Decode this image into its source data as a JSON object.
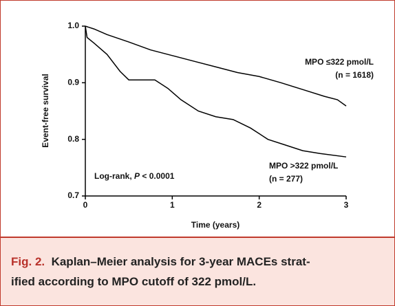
{
  "chart_data": {
    "type": "line",
    "x_label": "Time (years)",
    "y_label": "Event-free survival",
    "xlim": [
      0,
      3
    ],
    "xticks": [
      0,
      1,
      2,
      3
    ],
    "ylim": [
      0.7,
      1
    ],
    "yticks": [
      0.7,
      0.8,
      0.9,
      {
        "value": 1,
        "label": "1.0"
      }
    ],
    "series": [
      {
        "name": "MPO ≤322 pmol/L",
        "n_label": "(n = 1618)",
        "color": "#000000",
        "x": [
          0,
          0.1,
          0.25,
          0.5,
          0.75,
          1,
          1.25,
          1.5,
          1.75,
          2,
          2.25,
          2.5,
          2.75,
          2.9,
          3
        ],
        "values": [
          1,
          0.995,
          0.985,
          0.972,
          0.958,
          0.948,
          0.938,
          0.928,
          0.918,
          0.911,
          0.9,
          0.888,
          0.876,
          0.87,
          0.859
        ]
      },
      {
        "name": "MPO >322 pmol/L",
        "n_label": "(n = 277)",
        "color": "#000000",
        "x": [
          0,
          0.02,
          0.1,
          0.25,
          0.4,
          0.5,
          0.8,
          0.95,
          1.1,
          1.3,
          1.5,
          1.7,
          1.9,
          2,
          2.1,
          2.3,
          2.5,
          2.7,
          3
        ],
        "values": [
          1,
          0.98,
          0.97,
          0.95,
          0.92,
          0.905,
          0.905,
          0.89,
          0.87,
          0.85,
          0.84,
          0.835,
          0.82,
          0.81,
          0.8,
          0.79,
          0.78,
          0.775,
          0.769
        ]
      }
    ],
    "annotation": [
      "Log-rank, ",
      "P",
      " < 0.0001"
    ]
  },
  "caption": {
    "label": "Fig. 2.",
    "lines": [
      "Kaplan–Meier analysis for 3-year MACEs strat-",
      "ified according to MPO cutoff of 322 pmol/L."
    ]
  }
}
